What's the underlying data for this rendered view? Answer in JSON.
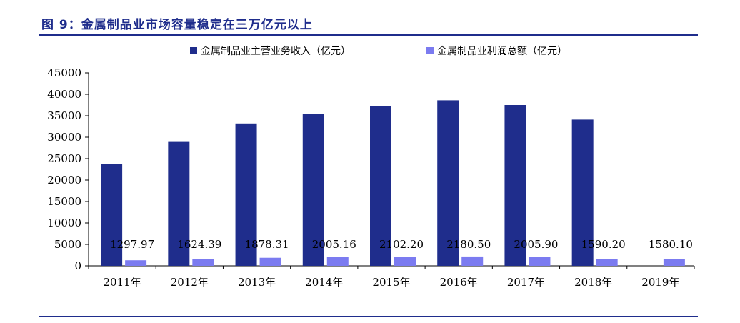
{
  "title": "图 9：金属制品业市场容量稳定在三万亿元以上",
  "chart_data": {
    "type": "bar",
    "categories": [
      "2011年",
      "2012年",
      "2013年",
      "2014年",
      "2015年",
      "2016年",
      "2017年",
      "2018年",
      "2019年"
    ],
    "series": [
      {
        "name": "金属制品业主营业务收入（亿元）",
        "color": "#1f2d8c",
        "values": [
          23800,
          28900,
          33200,
          35500,
          37200,
          38600,
          37500,
          34100,
          null
        ]
      },
      {
        "name": "金属制品业利润总额（亿元）",
        "color": "#7b7bf0",
        "values": [
          1297.97,
          1624.39,
          1878.31,
          2005.16,
          2102.2,
          2180.5,
          2005.9,
          1590.2,
          1580.1
        ],
        "data_labels": [
          "1297.97",
          "1624.39",
          "1878.31",
          "2005.16",
          "2102.20",
          "2180.50",
          "2005.90",
          "1590.20",
          "1580.10"
        ]
      }
    ],
    "ylim": [
      0,
      45000
    ],
    "yticks": [
      "0",
      "5000",
      "10000",
      "15000",
      "20000",
      "25000",
      "30000",
      "35000",
      "40000",
      "45000"
    ],
    "grid": false,
    "legend": "top-center"
  }
}
